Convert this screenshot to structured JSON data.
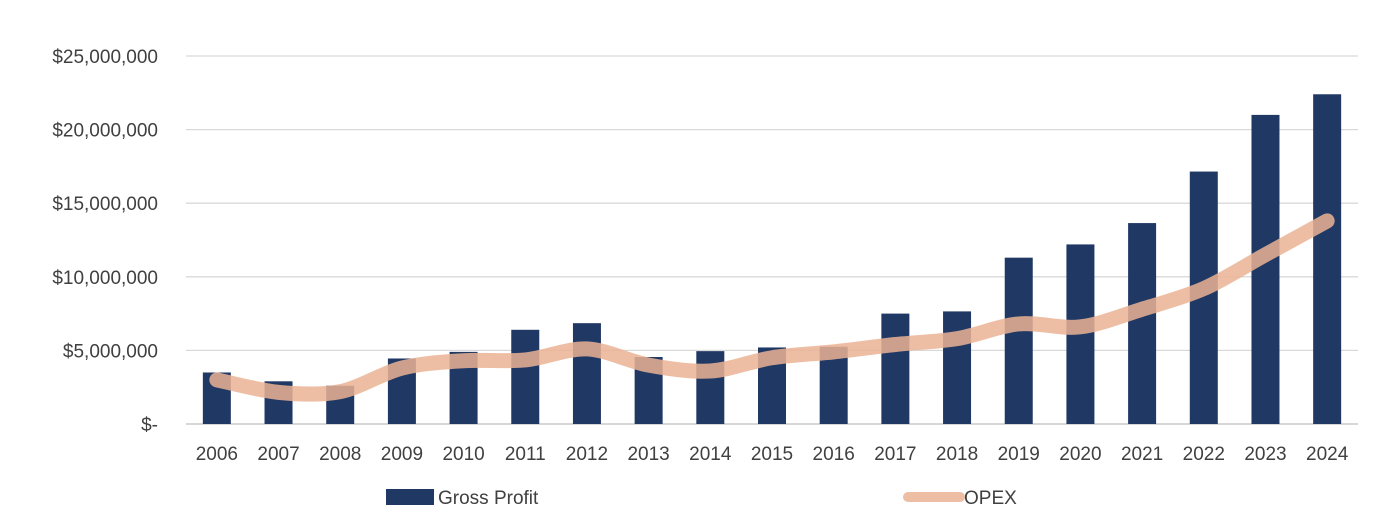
{
  "chart_data": {
    "type": "bar",
    "title": "",
    "xlabel": "",
    "ylabel": "",
    "categories": [
      "2006",
      "2007",
      "2008",
      "2009",
      "2010",
      "2011",
      "2012",
      "2013",
      "2014",
      "2015",
      "2016",
      "2017",
      "2018",
      "2019",
      "2020",
      "2021",
      "2022",
      "2023",
      "2024"
    ],
    "ylim": [
      0,
      25000000
    ],
    "yticks": [
      0,
      5000000,
      10000000,
      15000000,
      20000000,
      25000000
    ],
    "ytick_labels": [
      "$-",
      "$5,000,000",
      "$10,000,000",
      "$15,000,000",
      "$20,000,000",
      "$25,000,000"
    ],
    "grid": true,
    "legend_position": "bottom",
    "series": [
      {
        "name": "Gross Profit",
        "type": "bar",
        "color": "#203864",
        "values": [
          3500000,
          2900000,
          2600000,
          4450000,
          4900000,
          6400000,
          6850000,
          4550000,
          4950000,
          5200000,
          5250000,
          7500000,
          7650000,
          11300000,
          12200000,
          13650000,
          17150000,
          21000000,
          22400000
        ]
      },
      {
        "name": "OPEX",
        "type": "line",
        "color": "#EBB394",
        "values": [
          3000000,
          2150000,
          2200000,
          3800000,
          4300000,
          4350000,
          5100000,
          4000000,
          3600000,
          4500000,
          4900000,
          5400000,
          5800000,
          6800000,
          6600000,
          7800000,
          9200000,
          11500000,
          13800000
        ]
      }
    ]
  }
}
